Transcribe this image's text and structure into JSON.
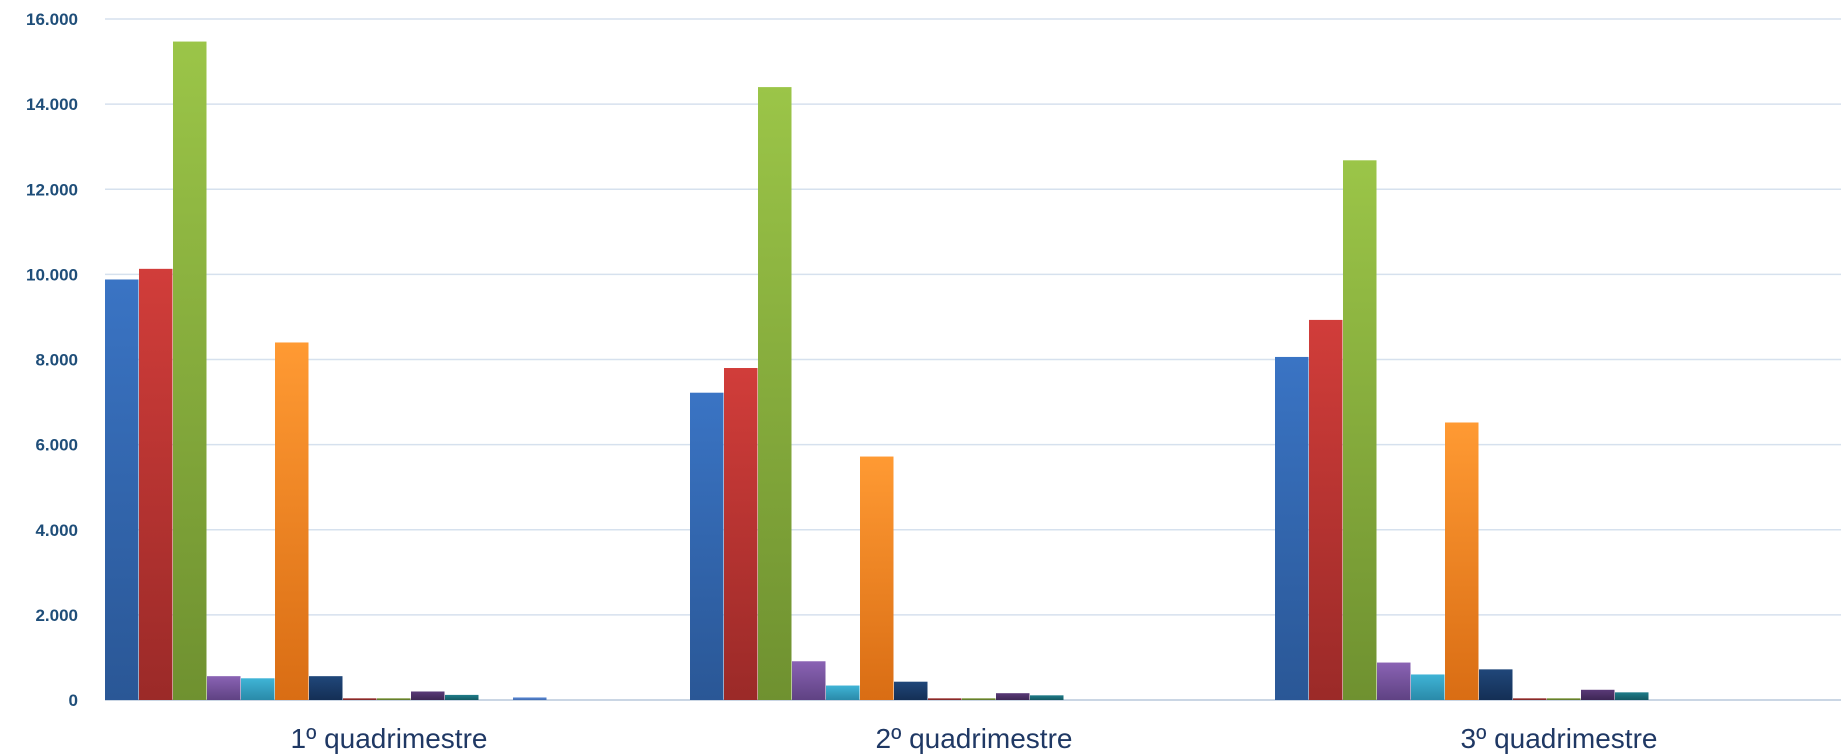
{
  "chart_data": {
    "type": "bar",
    "categories": [
      "1º quadrimestre",
      "2º quadrimestre",
      "3º quadrimestre"
    ],
    "ylim": [
      0,
      16000
    ],
    "yticks": [
      0,
      2000,
      4000,
      6000,
      8000,
      10000,
      12000,
      14000,
      16000
    ],
    "ytick_labels": [
      "0",
      "2.000",
      "4.000",
      "6.000",
      "8.000",
      "10.000",
      "12.000",
      "14.000",
      "16.000"
    ],
    "grid": true,
    "series": [
      {
        "color": "#3a74c4",
        "color_dark": "#2a5796",
        "values": [
          9880,
          7220,
          8060
        ]
      },
      {
        "color": "#d13d3a",
        "color_dark": "#9b2a28",
        "values": [
          10130,
          7800,
          8930
        ]
      },
      {
        "color": "#9bc548",
        "color_dark": "#6f9130",
        "values": [
          15470,
          14400,
          12680
        ]
      },
      {
        "color": "#8a63b4",
        "color_dark": "#5f4283",
        "values": [
          560,
          910,
          880
        ]
      },
      {
        "color": "#3fb4d6",
        "color_dark": "#2a8aa9",
        "values": [
          510,
          340,
          600
        ]
      },
      {
        "color": "#ff9a33",
        "color_dark": "#d96d14",
        "values": [
          8400,
          5720,
          6520
        ]
      },
      {
        "color": "#20477a",
        "color_dark": "#142f55",
        "values": [
          560,
          430,
          720
        ]
      },
      {
        "color": "#a33836",
        "color_dark": "#7a2422",
        "values": [
          40,
          40,
          40
        ]
      },
      {
        "color": "#7f9b3a",
        "color_dark": "#5c7228",
        "values": [
          40,
          40,
          40
        ]
      },
      {
        "color": "#5a3a78",
        "color_dark": "#3d2654",
        "values": [
          200,
          160,
          240
        ]
      },
      {
        "color": "#1f7d8a",
        "color_dark": "#145962",
        "values": [
          120,
          110,
          180
        ]
      },
      {
        "color": "#c8611c",
        "color_dark": "#964712",
        "values": [
          0,
          0,
          0
        ]
      },
      {
        "color": "#5b8ad6",
        "color_dark": "#3f6ab0",
        "values": [
          60,
          0,
          0
        ]
      }
    ]
  }
}
